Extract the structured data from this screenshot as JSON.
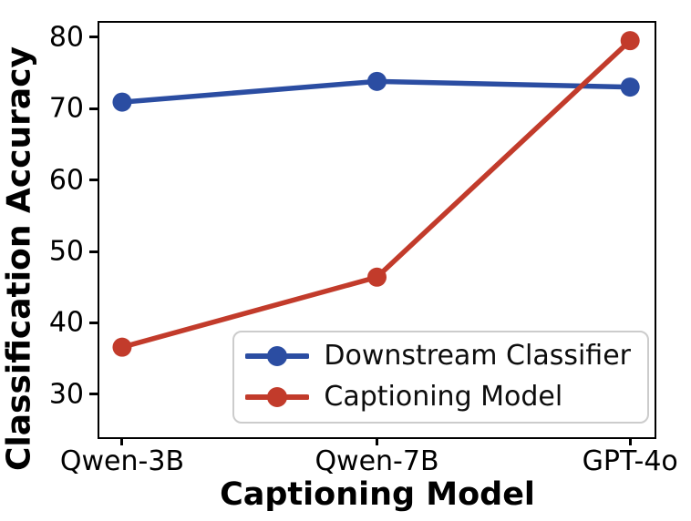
{
  "chart_data": {
    "type": "line",
    "title": "",
    "xlabel": "Captioning Model",
    "ylabel": "Classification Accuracy",
    "categories": [
      "Qwen-3B",
      "Qwen-7B",
      "GPT-4o"
    ],
    "series": [
      {
        "name": "Downstream Classifier",
        "color": "#2b4da2",
        "values": [
          70.9,
          73.8,
          73.0
        ]
      },
      {
        "name": "Captioning Model",
        "color": "#c23b2b",
        "values": [
          36.6,
          46.4,
          79.5
        ]
      }
    ],
    "yticks": [
      30,
      40,
      50,
      60,
      70,
      80
    ],
    "ylim": [
      24,
      82
    ],
    "grid": false,
    "legend_position": "lower right",
    "axis_color": "#000000",
    "background_color": "#ffffff"
  }
}
